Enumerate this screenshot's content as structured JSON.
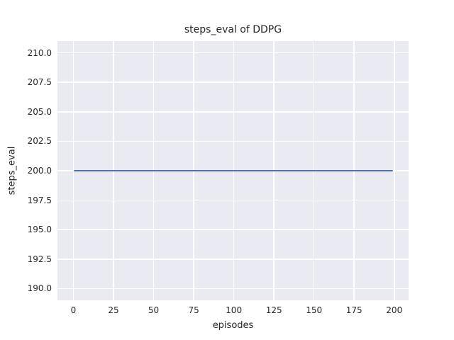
{
  "chart_data": {
    "type": "line",
    "title": "steps_eval of DDPG",
    "xlabel": "episodes",
    "ylabel": "steps_eval",
    "x_ticks": [
      0,
      25,
      50,
      75,
      100,
      125,
      150,
      175,
      200
    ],
    "x_tick_labels": [
      "0",
      "25",
      "50",
      "75",
      "100",
      "125",
      "150",
      "175",
      "200"
    ],
    "y_ticks": [
      190.0,
      192.5,
      195.0,
      197.5,
      200.0,
      202.5,
      205.0,
      207.5,
      210.0
    ],
    "y_tick_labels": [
      "190.0",
      "192.5",
      "195.0",
      "197.5",
      "200.0",
      "202.5",
      "205.0",
      "207.5",
      "210.0"
    ],
    "xlim": [
      -9.95,
      208.95
    ],
    "ylim": [
      189.0,
      211.0
    ],
    "grid": true,
    "legend": null,
    "series": [
      {
        "name": "steps_eval",
        "x": [
          0,
          199
        ],
        "y": [
          200,
          200
        ],
        "color": "#4C72B0",
        "linewidth": 2.5
      }
    ],
    "style": {
      "figure_bg": "#FFFFFF",
      "plot_bg": "#EAEAF2",
      "grid_color": "#FFFFFF",
      "text_color": "#262626"
    }
  }
}
